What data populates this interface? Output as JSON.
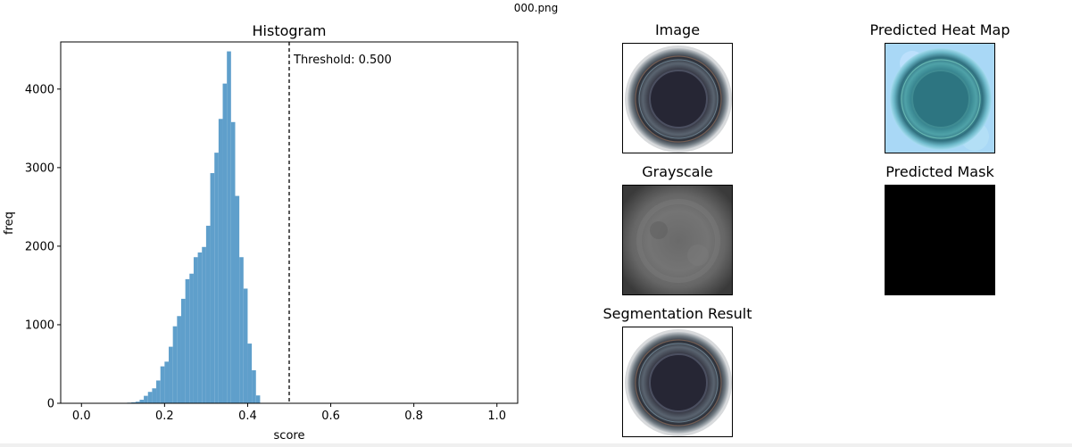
{
  "supertitle": "000.png",
  "panels": {
    "image": "Image",
    "heatmap": "Predicted Heat Map",
    "grayscale": "Grayscale",
    "mask": "Predicted Mask",
    "segmentation": "Segmentation Result"
  },
  "colors": {
    "bar": "#5f9fcb",
    "threshold": "#000000",
    "mask": "#000000"
  },
  "chart_data": {
    "type": "bar",
    "title": "Histogram",
    "xlabel": "score",
    "ylabel": "freq",
    "xlim": [
      -0.05,
      1.05
    ],
    "ylim": [
      0,
      4600
    ],
    "xticks": [
      0.0,
      0.2,
      0.4,
      0.6,
      0.8,
      1.0
    ],
    "xtick_labels": [
      "0.0",
      "0.2",
      "0.4",
      "0.6",
      "0.8",
      "1.0"
    ],
    "yticks": [
      0,
      1000,
      2000,
      3000,
      4000
    ],
    "ytick_labels": [
      "0",
      "1000",
      "2000",
      "3000",
      "4000"
    ],
    "bin_width": 0.01,
    "bins": [
      {
        "x": 0.1,
        "v": 5
      },
      {
        "x": 0.11,
        "v": 8
      },
      {
        "x": 0.12,
        "v": 12
      },
      {
        "x": 0.13,
        "v": 20
      },
      {
        "x": 0.14,
        "v": 45
      },
      {
        "x": 0.15,
        "v": 95
      },
      {
        "x": 0.16,
        "v": 145
      },
      {
        "x": 0.17,
        "v": 190
      },
      {
        "x": 0.18,
        "v": 290
      },
      {
        "x": 0.19,
        "v": 470
      },
      {
        "x": 0.2,
        "v": 530
      },
      {
        "x": 0.21,
        "v": 720
      },
      {
        "x": 0.22,
        "v": 980
      },
      {
        "x": 0.23,
        "v": 1110
      },
      {
        "x": 0.24,
        "v": 1330
      },
      {
        "x": 0.25,
        "v": 1580
      },
      {
        "x": 0.26,
        "v": 1650
      },
      {
        "x": 0.27,
        "v": 1860
      },
      {
        "x": 0.28,
        "v": 1920
      },
      {
        "x": 0.29,
        "v": 1990
      },
      {
        "x": 0.3,
        "v": 2260
      },
      {
        "x": 0.31,
        "v": 2930
      },
      {
        "x": 0.32,
        "v": 3190
      },
      {
        "x": 0.33,
        "v": 3620
      },
      {
        "x": 0.34,
        "v": 4070
      },
      {
        "x": 0.35,
        "v": 4480
      },
      {
        "x": 0.36,
        "v": 3580
      },
      {
        "x": 0.37,
        "v": 2640
      },
      {
        "x": 0.38,
        "v": 1860
      },
      {
        "x": 0.39,
        "v": 1460
      },
      {
        "x": 0.4,
        "v": 760
      },
      {
        "x": 0.41,
        "v": 420
      },
      {
        "x": 0.42,
        "v": 100
      }
    ],
    "annotations": [
      {
        "type": "vline",
        "x": 0.5,
        "style": "dashed",
        "label": "Threshold: 0.500"
      }
    ]
  }
}
